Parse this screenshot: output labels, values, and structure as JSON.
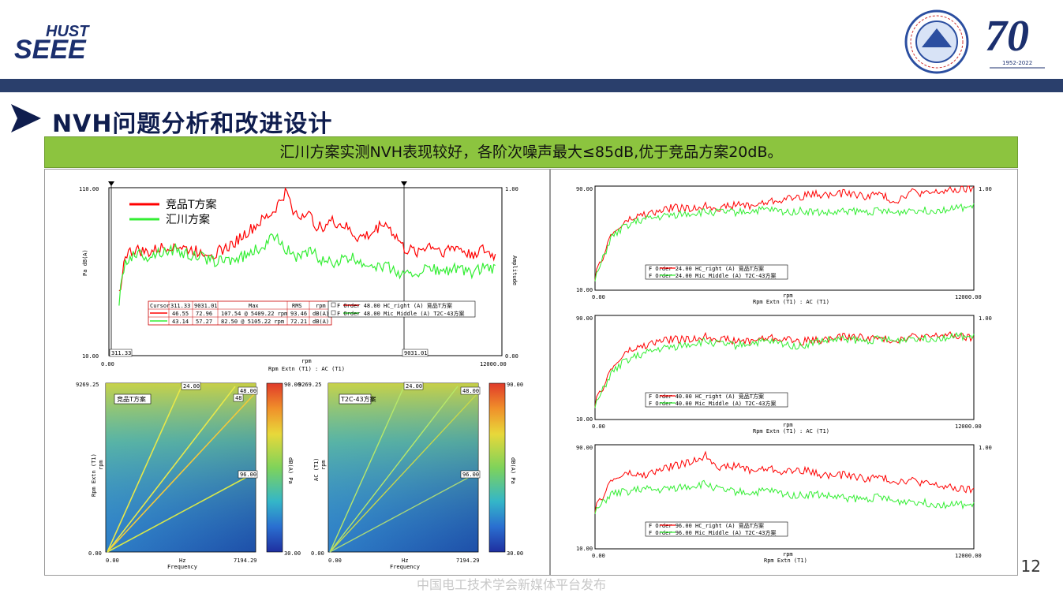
{
  "header": {
    "logo_text_top": "HUST",
    "logo_text_bottom": "SEEE",
    "seal_year": "1952-2022",
    "anniversary": "70"
  },
  "slide": {
    "title": "NVH问题分析和改进设计",
    "banner": "汇川方案实测NVH表现较好，各阶次噪声最大≤85dB,优于竞品方案20dB。",
    "page_number": "12",
    "footer": "中国电工技术学会新媒体平台发布"
  },
  "colors": {
    "brand_navy": "#2a3f6c",
    "banner_green": "#8cc43f",
    "competitor_red": "#ff0000",
    "inovance_green": "#33ee33"
  },
  "main_chart": {
    "y_top": "110.00",
    "y_bottom": "10.00",
    "x_left": "0.00",
    "x_right": "12000.00",
    "right_top": "1.00",
    "right_bottom": "0.00",
    "ylabel": "Pa dB(A)",
    "right_label": "Amplitude",
    "xlabel_top": "rpm",
    "xlabel": "Rpm Extn (T1) : AC (T1)",
    "cursor_left": "311.33",
    "cursor_right": "9031.01",
    "legend": [
      "竞品T方案",
      "汇川方案"
    ],
    "table": {
      "headers": [
        "Cursor",
        "311.33",
        "9031.01",
        "Max",
        "RMS",
        "rpm"
      ],
      "rows": [
        [
          "",
          "46.55",
          "72.96",
          "107.54 @ 5409.22 rpm",
          "93.46",
          "dB(A)"
        ],
        [
          "",
          "43.14",
          "57.27",
          "82.50 @ 5105.22 rpm",
          "72.21",
          "dB(A)"
        ]
      ]
    },
    "trace_legend": [
      "F    Order 48.00 HC_right (A)  竞品T方案",
      "F    Order 48.00 Mic_Middle (A) T2C-43方案"
    ]
  },
  "colormaps": [
    {
      "label": "竞品T方案",
      "y_top": "9269.25",
      "y_bottom": "0.00",
      "x_left": "0.00",
      "x_right": "7194.29",
      "x_mid": "Hz",
      "xlabel": "Frequency",
      "ylabel": "Rpm Extn (T1)",
      "ylabel2": "rpm",
      "orders": [
        "24.00",
        "48.00",
        "48",
        "96.00"
      ],
      "scale_top": "90.00",
      "scale_bottom": "30.00",
      "scale_label": "dB(A) Pa"
    },
    {
      "label": "T2C-43方案",
      "y_top": "9269.25",
      "y_bottom": "0.00",
      "x_left": "0.00",
      "x_right": "7194.29",
      "x_mid": "Hz",
      "xlabel": "Frequency",
      "ylabel": "AC (T1)",
      "ylabel2": "rpm",
      "orders": [
        "24.00",
        "48.00",
        "48",
        "96.00"
      ],
      "scale_top": "90.00",
      "scale_bottom": "30.00",
      "scale_label": "dB(A) Pa"
    }
  ],
  "order_charts": [
    {
      "y_top": "90.00",
      "y_bottom": "10.00",
      "x_left": "0.00",
      "x_right": "12000.00",
      "right_top": "1.00",
      "xlabel_top": "rpm",
      "xlabel": "Rpm Extn (T1) : AC (T1)",
      "legend": [
        "F    Order 24.00 HC_right (A)  竞品T方案",
        "F    Order 24.00 Mic_Middle (A) T2C-43方案"
      ]
    },
    {
      "y_top": "90.00",
      "y_bottom": "10.00",
      "x_left": "0.00",
      "x_right": "12000.00",
      "right_top": "1.00",
      "xlabel_top": "rpm",
      "xlabel": "Rpm Extn (T1) : AC (T1)",
      "legend": [
        "F    Order 40.00 HC_right (A)  竞品T方案",
        "F    Order 40.00 Mic_Middle (A) T2C-43方案"
      ]
    },
    {
      "y_top": "90.00",
      "y_bottom": "10.00",
      "x_left": "0.00",
      "x_right": "12000.00",
      "right_top": "1.00",
      "xlabel_top": "rpm",
      "xlabel": "Rpm Extn (T1)",
      "legend": [
        "F    Order 96.00 HC_right (A)  竞品T方案",
        "F    Order 96.00 Mic_Middle (A) T2C-43方案"
      ]
    }
  ],
  "chart_data": [
    {
      "type": "line",
      "xlabel": "Rpm Extn (T1) : AC (T1)",
      "ylabel": "Pa dB(A)",
      "xlim": [
        0,
        12000
      ],
      "ylim": [
        10,
        110
      ],
      "series": [
        {
          "name": "竞品T方案",
          "color": "#ff0000",
          "x": [
            311,
            500,
            800,
            1200,
            1600,
            2000,
            2400,
            2800,
            3200,
            3600,
            4000,
            4400,
            4800,
            5000,
            5200,
            5409,
            5600,
            5800,
            6000,
            6400,
            6800,
            7200,
            7600,
            8000,
            8400,
            8800,
            9031,
            9400,
            9800,
            10200,
            10600,
            11000,
            11400,
            11800
          ],
          "y": [
            46.5,
            70,
            73,
            71,
            74,
            76,
            73,
            72,
            71,
            74,
            80,
            86,
            92,
            95,
            101,
            107.5,
            98,
            92,
            96,
            86,
            90,
            87,
            80,
            82,
            90,
            80,
            73,
            72,
            76,
            72,
            75,
            70,
            73,
            69
          ]
        },
        {
          "name": "汇川方案",
          "color": "#33ee33",
          "x": [
            311,
            500,
            800,
            1200,
            1600,
            2000,
            2400,
            2800,
            3200,
            3600,
            4000,
            4400,
            4800,
            5105,
            5400,
            5800,
            6200,
            6600,
            7000,
            7400,
            7800,
            8200,
            8600,
            9031,
            9400,
            9800,
            10200,
            10600,
            11000,
            11400,
            11800
          ],
          "y": [
            43,
            66,
            71,
            69,
            72,
            73,
            70,
            69,
            66,
            67,
            68,
            72,
            76,
            82.5,
            74,
            68,
            72,
            65,
            66,
            68,
            65,
            64,
            62,
            57.3,
            60,
            62,
            60,
            62,
            59,
            62,
            61
          ]
        }
      ]
    },
    {
      "type": "line",
      "title": "Order 24.00",
      "xlim": [
        0,
        12000
      ],
      "ylim": [
        10,
        90
      ],
      "series": [
        {
          "name": "竞品T方案",
          "color": "#ff0000",
          "x": [
            0,
            500,
            1000,
            1500,
            2000,
            2500,
            3000,
            3500,
            4000,
            4500,
            5000,
            5500,
            6000,
            6500,
            7000,
            7500,
            8000,
            8500,
            9000,
            9500,
            10000,
            10500,
            11000,
            11500,
            12000
          ],
          "y": [
            20,
            52,
            63,
            68,
            70,
            74,
            72,
            75,
            73,
            76,
            75,
            78,
            80,
            82,
            84,
            83,
            85,
            82,
            84,
            78,
            86,
            84,
            86,
            87,
            88
          ]
        },
        {
          "name": "汇川方案",
          "color": "#33ee33",
          "x": [
            0,
            500,
            1000,
            1500,
            2000,
            2500,
            3000,
            3500,
            4000,
            4500,
            5000,
            5500,
            6000,
            6500,
            7000,
            7500,
            8000,
            8500,
            9000,
            9500,
            10000,
            10500,
            11000,
            11500,
            12000
          ],
          "y": [
            18,
            50,
            60,
            64,
            66,
            68,
            69,
            70,
            70,
            70,
            71,
            72,
            70,
            71,
            70,
            69,
            71,
            70,
            71,
            69,
            72,
            71,
            72,
            73,
            74
          ]
        }
      ]
    },
    {
      "type": "line",
      "title": "Order 40.00",
      "xlim": [
        0,
        12000
      ],
      "ylim": [
        10,
        90
      ],
      "series": [
        {
          "name": "竞品T方案",
          "color": "#ff0000",
          "x": [
            0,
            500,
            1000,
            1500,
            2000,
            2500,
            3000,
            3500,
            4000,
            4500,
            5000,
            5500,
            6000,
            6500,
            7000,
            7500,
            8000,
            8500,
            9000,
            9500,
            10000,
            10500,
            11000,
            11500,
            12000
          ],
          "y": [
            22,
            48,
            62,
            66,
            70,
            72,
            71,
            74,
            72,
            70,
            71,
            73,
            72,
            70,
            71,
            72,
            74,
            73,
            72,
            71,
            74,
            73,
            75,
            74,
            72
          ]
        },
        {
          "name": "汇川方案",
          "color": "#33ee33",
          "x": [
            0,
            500,
            1000,
            1500,
            2000,
            2500,
            3000,
            3500,
            4000,
            4500,
            5000,
            5500,
            6000,
            6500,
            7000,
            7500,
            8000,
            8500,
            9000,
            9500,
            10000,
            10500,
            11000,
            11500,
            12000
          ],
          "y": [
            20,
            45,
            56,
            60,
            64,
            66,
            68,
            70,
            68,
            67,
            69,
            70,
            68,
            66,
            70,
            71,
            72,
            70,
            72,
            70,
            73,
            72,
            73,
            74,
            73
          ]
        }
      ]
    },
    {
      "type": "line",
      "title": "Order 96.00",
      "xlim": [
        0,
        12000
      ],
      "ylim": [
        10,
        90
      ],
      "series": [
        {
          "name": "竞品T方案",
          "color": "#ff0000",
          "x": [
            0,
            500,
            1000,
            1500,
            2000,
            2500,
            3000,
            3500,
            4000,
            4500,
            5000,
            5500,
            6000,
            6500,
            7000,
            7500,
            8000,
            8500,
            9000,
            9500,
            10000,
            10500,
            11000,
            11500,
            12000
          ],
          "y": [
            40,
            62,
            68,
            66,
            70,
            74,
            76,
            82,
            72,
            74,
            70,
            72,
            69,
            71,
            68,
            66,
            67,
            64,
            65,
            62,
            63,
            60,
            58,
            56,
            55
          ]
        },
        {
          "name": "汇川方案",
          "color": "#33ee33",
          "x": [
            0,
            500,
            1000,
            1500,
            2000,
            2500,
            3000,
            3500,
            4000,
            4500,
            5000,
            5500,
            6000,
            6500,
            7000,
            7500,
            8000,
            8500,
            9000,
            9500,
            10000,
            10500,
            11000,
            11500,
            12000
          ],
          "y": [
            38,
            52,
            54,
            56,
            55,
            57,
            58,
            60,
            55,
            54,
            53,
            55,
            52,
            51,
            52,
            50,
            49,
            48,
            50,
            46,
            47,
            45,
            44,
            44,
            43
          ]
        }
      ]
    }
  ]
}
